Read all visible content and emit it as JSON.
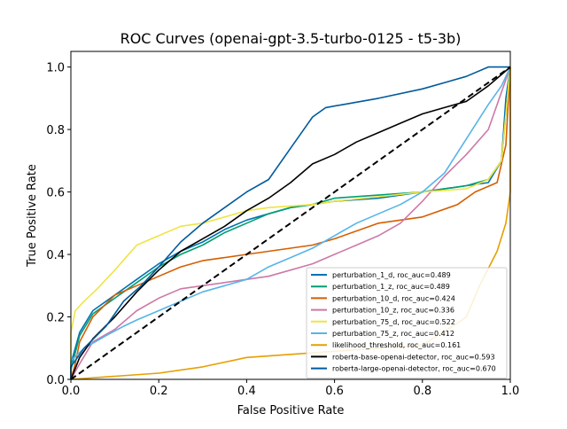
{
  "chart_data": {
    "type": "line",
    "title": "ROC Curves (openai-gpt-3.5-turbo-0125 - t5-3b)",
    "xlabel": "False Positive Rate",
    "ylabel": "True Positive Rate",
    "xlim": [
      0,
      1
    ],
    "ylim": [
      0,
      1.05
    ],
    "xticks": [
      0.0,
      0.2,
      0.4,
      0.6,
      0.8,
      1.0
    ],
    "yticks": [
      0.0,
      0.2,
      0.4,
      0.6,
      0.8,
      1.0
    ],
    "tick_labels": [
      "0.0",
      "0.2",
      "0.4",
      "0.6",
      "0.8",
      "1.0"
    ],
    "grid": false,
    "legend_position": "lower-right",
    "diagonal": {
      "color": "#000000",
      "style": "dashed"
    },
    "series": [
      {
        "name": "perturbation_1_d, roc_auc=0.489",
        "color": "#0072b2",
        "points": [
          [
            0,
            0
          ],
          [
            0,
            0.05
          ],
          [
            0.02,
            0.15
          ],
          [
            0.05,
            0.22
          ],
          [
            0.1,
            0.27
          ],
          [
            0.15,
            0.32
          ],
          [
            0.2,
            0.37
          ],
          [
            0.25,
            0.41
          ],
          [
            0.3,
            0.44
          ],
          [
            0.35,
            0.48
          ],
          [
            0.4,
            0.51
          ],
          [
            0.45,
            0.53
          ],
          [
            0.5,
            0.55
          ],
          [
            0.55,
            0.56
          ],
          [
            0.6,
            0.57
          ],
          [
            0.7,
            0.58
          ],
          [
            0.8,
            0.6
          ],
          [
            0.9,
            0.62
          ],
          [
            0.95,
            0.63
          ],
          [
            0.98,
            0.7
          ],
          [
            0.99,
            0.9
          ],
          [
            1,
            1
          ]
        ]
      },
      {
        "name": "perturbation_1_z, roc_auc=0.489",
        "color": "#009e73",
        "points": [
          [
            0,
            0
          ],
          [
            0,
            0.03
          ],
          [
            0.02,
            0.14
          ],
          [
            0.05,
            0.21
          ],
          [
            0.1,
            0.26
          ],
          [
            0.15,
            0.31
          ],
          [
            0.2,
            0.36
          ],
          [
            0.25,
            0.4
          ],
          [
            0.3,
            0.43
          ],
          [
            0.35,
            0.47
          ],
          [
            0.4,
            0.5
          ],
          [
            0.45,
            0.53
          ],
          [
            0.5,
            0.55
          ],
          [
            0.55,
            0.56
          ],
          [
            0.6,
            0.58
          ],
          [
            0.7,
            0.59
          ],
          [
            0.8,
            0.6
          ],
          [
            0.9,
            0.62
          ],
          [
            0.95,
            0.64
          ],
          [
            0.98,
            0.7
          ],
          [
            0.99,
            0.85
          ],
          [
            1,
            1
          ]
        ]
      },
      {
        "name": "perturbation_10_d, roc_auc=0.424",
        "color": "#d55e00",
        "points": [
          [
            0,
            0
          ],
          [
            0.01,
            0.05
          ],
          [
            0.02,
            0.12
          ],
          [
            0.05,
            0.2
          ],
          [
            0.1,
            0.27
          ],
          [
            0.15,
            0.3
          ],
          [
            0.2,
            0.33
          ],
          [
            0.25,
            0.36
          ],
          [
            0.3,
            0.38
          ],
          [
            0.35,
            0.39
          ],
          [
            0.4,
            0.4
          ],
          [
            0.45,
            0.41
          ],
          [
            0.5,
            0.42
          ],
          [
            0.55,
            0.43
          ],
          [
            0.6,
            0.45
          ],
          [
            0.7,
            0.5
          ],
          [
            0.8,
            0.52
          ],
          [
            0.88,
            0.56
          ],
          [
            0.92,
            0.6
          ],
          [
            0.97,
            0.63
          ],
          [
            0.99,
            0.75
          ],
          [
            1,
            1
          ]
        ]
      },
      {
        "name": "perturbation_10_z, roc_auc=0.336",
        "color": "#cc79a7",
        "points": [
          [
            0,
            0
          ],
          [
            0.02,
            0.05
          ],
          [
            0.05,
            0.12
          ],
          [
            0.1,
            0.16
          ],
          [
            0.15,
            0.22
          ],
          [
            0.2,
            0.26
          ],
          [
            0.25,
            0.29
          ],
          [
            0.3,
            0.3
          ],
          [
            0.35,
            0.31
          ],
          [
            0.4,
            0.32
          ],
          [
            0.45,
            0.33
          ],
          [
            0.5,
            0.35
          ],
          [
            0.55,
            0.37
          ],
          [
            0.6,
            0.4
          ],
          [
            0.65,
            0.43
          ],
          [
            0.7,
            0.46
          ],
          [
            0.75,
            0.5
          ],
          [
            0.8,
            0.57
          ],
          [
            0.85,
            0.65
          ],
          [
            0.9,
            0.72
          ],
          [
            0.95,
            0.8
          ],
          [
            0.98,
            0.92
          ],
          [
            1,
            1
          ]
        ]
      },
      {
        "name": "perturbation_75_d, roc_auc=0.522",
        "color": "#f0e442",
        "points": [
          [
            0,
            0
          ],
          [
            0,
            0.15
          ],
          [
            0.01,
            0.22
          ],
          [
            0.03,
            0.25
          ],
          [
            0.06,
            0.29
          ],
          [
            0.1,
            0.35
          ],
          [
            0.15,
            0.43
          ],
          [
            0.2,
            0.46
          ],
          [
            0.25,
            0.49
          ],
          [
            0.3,
            0.5
          ],
          [
            0.35,
            0.52
          ],
          [
            0.4,
            0.54
          ],
          [
            0.45,
            0.55
          ],
          [
            0.5,
            0.555
          ],
          [
            0.55,
            0.56
          ],
          [
            0.6,
            0.57
          ],
          [
            0.7,
            0.585
          ],
          [
            0.8,
            0.6
          ],
          [
            0.9,
            0.61
          ],
          [
            0.95,
            0.64
          ],
          [
            0.98,
            0.7
          ],
          [
            1,
            1
          ]
        ]
      },
      {
        "name": "perturbation_75_z, roc_auc=0.412",
        "color": "#56b4e9",
        "points": [
          [
            0,
            0
          ],
          [
            0,
            0.06
          ],
          [
            0.03,
            0.1
          ],
          [
            0.08,
            0.14
          ],
          [
            0.12,
            0.17
          ],
          [
            0.15,
            0.19
          ],
          [
            0.2,
            0.22
          ],
          [
            0.25,
            0.25
          ],
          [
            0.3,
            0.28
          ],
          [
            0.35,
            0.3
          ],
          [
            0.4,
            0.32
          ],
          [
            0.45,
            0.36
          ],
          [
            0.5,
            0.39
          ],
          [
            0.55,
            0.42
          ],
          [
            0.6,
            0.46
          ],
          [
            0.65,
            0.5
          ],
          [
            0.7,
            0.53
          ],
          [
            0.75,
            0.56
          ],
          [
            0.8,
            0.6
          ],
          [
            0.85,
            0.66
          ],
          [
            0.9,
            0.77
          ],
          [
            0.95,
            0.88
          ],
          [
            0.98,
            0.94
          ],
          [
            1,
            1
          ]
        ]
      },
      {
        "name": "likelihood_threshold, roc_auc=0.161",
        "color": "#e69f00",
        "points": [
          [
            0,
            0
          ],
          [
            0.1,
            0.01
          ],
          [
            0.2,
            0.02
          ],
          [
            0.3,
            0.04
          ],
          [
            0.4,
            0.07
          ],
          [
            0.5,
            0.08
          ],
          [
            0.6,
            0.09
          ],
          [
            0.7,
            0.1
          ],
          [
            0.8,
            0.11
          ],
          [
            0.88,
            0.18
          ],
          [
            0.9,
            0.2
          ],
          [
            0.93,
            0.3
          ],
          [
            0.97,
            0.41
          ],
          [
            0.99,
            0.5
          ],
          [
            1,
            0.6
          ],
          [
            1,
            1
          ]
        ]
      },
      {
        "name": "roberta-base-openai-detector, roc_auc=0.593",
        "color": "#000000",
        "points": [
          [
            0,
            0
          ],
          [
            0.02,
            0.07
          ],
          [
            0.05,
            0.13
          ],
          [
            0.1,
            0.2
          ],
          [
            0.15,
            0.28
          ],
          [
            0.2,
            0.35
          ],
          [
            0.25,
            0.41
          ],
          [
            0.3,
            0.45
          ],
          [
            0.35,
            0.49
          ],
          [
            0.4,
            0.54
          ],
          [
            0.45,
            0.58
          ],
          [
            0.5,
            0.63
          ],
          [
            0.55,
            0.69
          ],
          [
            0.6,
            0.72
          ],
          [
            0.65,
            0.76
          ],
          [
            0.7,
            0.79
          ],
          [
            0.75,
            0.82
          ],
          [
            0.8,
            0.85
          ],
          [
            0.85,
            0.87
          ],
          [
            0.9,
            0.89
          ],
          [
            0.95,
            0.94
          ],
          [
            1,
            1
          ]
        ]
      },
      {
        "name": "roberta-large-openai-detector, roc_auc=0.670",
        "color": "#005a9c",
        "points": [
          [
            0,
            0
          ],
          [
            0,
            0.04
          ],
          [
            0.03,
            0.1
          ],
          [
            0.08,
            0.17
          ],
          [
            0.12,
            0.25
          ],
          [
            0.16,
            0.3
          ],
          [
            0.2,
            0.36
          ],
          [
            0.25,
            0.44
          ],
          [
            0.3,
            0.5
          ],
          [
            0.35,
            0.55
          ],
          [
            0.4,
            0.6
          ],
          [
            0.45,
            0.64
          ],
          [
            0.5,
            0.74
          ],
          [
            0.53,
            0.8
          ],
          [
            0.55,
            0.84
          ],
          [
            0.58,
            0.87
          ],
          [
            0.62,
            0.88
          ],
          [
            0.7,
            0.9
          ],
          [
            0.8,
            0.93
          ],
          [
            0.9,
            0.97
          ],
          [
            0.95,
            1.0
          ],
          [
            1,
            1
          ]
        ]
      }
    ]
  }
}
